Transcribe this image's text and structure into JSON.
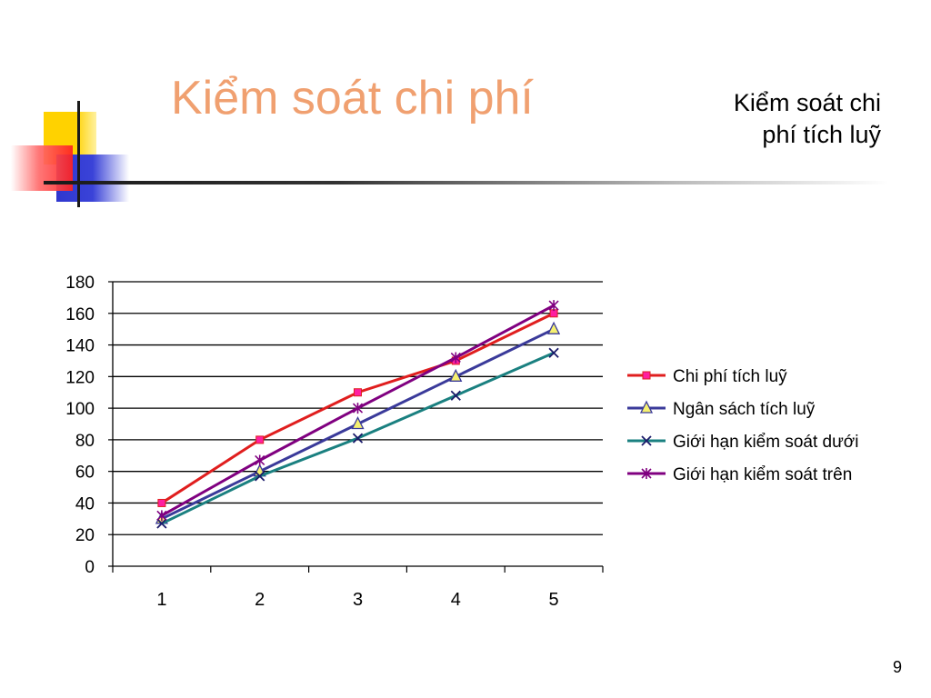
{
  "slide": {
    "title": "Kiểm soát chi phí",
    "subtitle_line1": "Kiểm soát chi",
    "subtitle_line2": "phí tích luỹ",
    "page_number": "9"
  },
  "colors": {
    "title": "#f0a070",
    "series": [
      "#e01e1e",
      "#3a3a9a",
      "#1a8080",
      "#800080"
    ],
    "marker_fill": [
      "#ff1fa0",
      "#f5f070",
      "#1a1a6a",
      "#800080"
    ]
  },
  "chart_data": {
    "type": "line",
    "x": [
      "1",
      "2",
      "3",
      "4",
      "5"
    ],
    "ylim": [
      0,
      180
    ],
    "yticks": [
      0,
      20,
      40,
      60,
      80,
      100,
      120,
      140,
      160,
      180
    ],
    "grid": true,
    "legend_position": "right",
    "series": [
      {
        "name": "Chi phí tích luỹ",
        "marker": "square",
        "values": [
          40,
          80,
          110,
          130,
          160
        ]
      },
      {
        "name": "Ngân sách tích luỹ",
        "marker": "triangle",
        "values": [
          30,
          60,
          90,
          120,
          150
        ]
      },
      {
        "name": "Giới hạn kiểm soát dưới",
        "marker": "x",
        "values": [
          27,
          57,
          81,
          108,
          135
        ]
      },
      {
        "name": "Giới hạn kiểm soát trên",
        "marker": "star",
        "values": [
          32,
          67,
          100,
          132,
          165
        ]
      }
    ]
  }
}
